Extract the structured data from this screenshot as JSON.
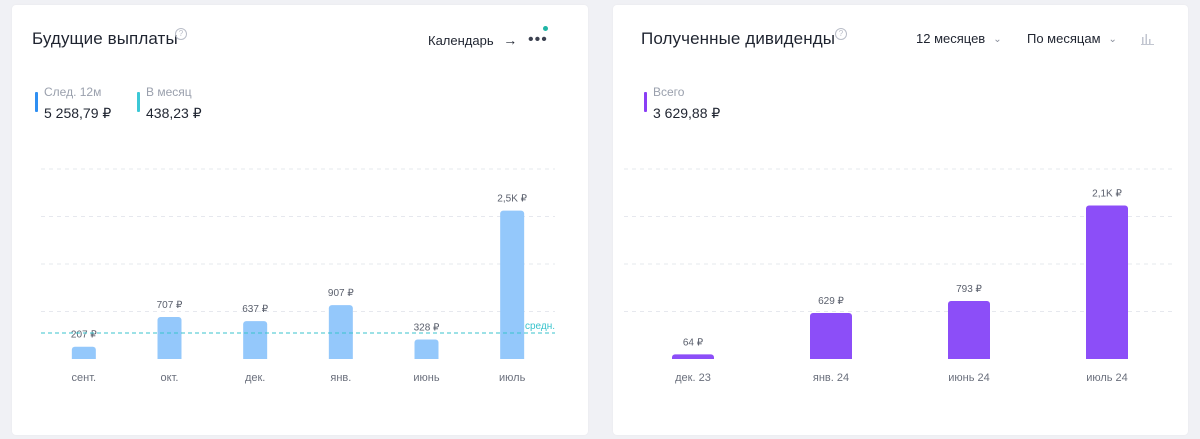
{
  "left": {
    "title": "Будущие выплаты",
    "help_icon": "question-circle-icon",
    "calendar_label": "Календарь",
    "calendar_arrow": "→",
    "menu_icon": "more-horizontal-icon",
    "stats": [
      {
        "label": "След. 12м",
        "value": "5 258,79 ₽",
        "color": "#2f8ff2"
      },
      {
        "label": "В месяц",
        "value": "438,23 ₽",
        "color": "#3cc8d6"
      }
    ],
    "avg_label": "средн."
  },
  "right": {
    "title": "Полученные дивиденды",
    "help_icon": "question-circle-icon",
    "period_select": "12 месяцев",
    "group_select": "По месяцам",
    "chart_type_icon": "bar-chart-icon",
    "stats": [
      {
        "label": "Всего",
        "value": "3 629,88 ₽",
        "color": "#8a3ff5"
      }
    ]
  },
  "chart_data": [
    {
      "type": "bar",
      "categories": [
        "сент.",
        "окт.",
        "дек.",
        "янв.",
        "июнь",
        "июль"
      ],
      "values": [
        207,
        707,
        637,
        907,
        328,
        2500
      ],
      "data_labels": [
        "207 ₽",
        "707 ₽",
        "637 ₽",
        "907 ₽",
        "328 ₽",
        "2,5K ₽"
      ],
      "average": 438.23,
      "average_label": "средн.",
      "bar_color": "#94c8fb",
      "avg_line_color": "#38c3cc",
      "ylim": [
        0,
        3200
      ],
      "grid": true
    },
    {
      "type": "bar",
      "categories": [
        "дек. 23",
        "янв. 24",
        "июнь 24",
        "июль 24"
      ],
      "values": [
        64,
        629,
        793,
        2100
      ],
      "data_labels": [
        "64 ₽",
        "629 ₽",
        "793 ₽",
        "2,1K ₽"
      ],
      "bar_color": "#8c4ef8",
      "ylim": [
        0,
        2600
      ],
      "grid": true
    }
  ]
}
